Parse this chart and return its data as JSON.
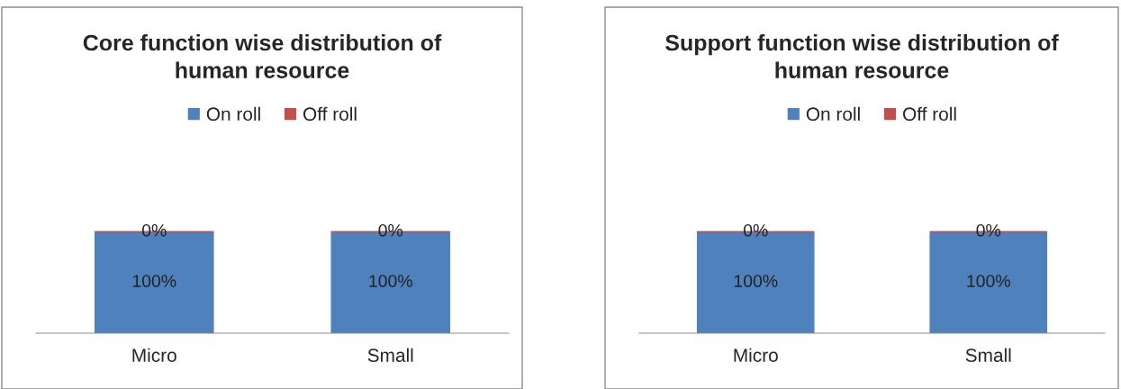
{
  "chart_data": [
    {
      "type": "bar",
      "title": "Core function wise distribution of human resource",
      "categories": [
        "Micro",
        "Small"
      ],
      "stacked": true,
      "legend": "top",
      "series": [
        {
          "name": "On roll",
          "color": "#4f81bd",
          "values": [
            100,
            100
          ],
          "value_labels": [
            "100%",
            "100%"
          ]
        },
        {
          "name": "Off roll",
          "color": "#c0504d",
          "values": [
            0,
            0
          ],
          "value_labels": [
            "0%",
            "0%"
          ]
        }
      ]
    },
    {
      "type": "bar",
      "title": "Support function wise distribution of human resource",
      "categories": [
        "Micro",
        "Small"
      ],
      "stacked": true,
      "legend": "top",
      "series": [
        {
          "name": "On roll",
          "color": "#4f81bd",
          "values": [
            100,
            100
          ],
          "value_labels": [
            "100%",
            "100%"
          ]
        },
        {
          "name": "Off roll",
          "color": "#c0504d",
          "values": [
            0,
            0
          ],
          "value_labels": [
            "0%",
            "0%"
          ]
        }
      ]
    }
  ]
}
